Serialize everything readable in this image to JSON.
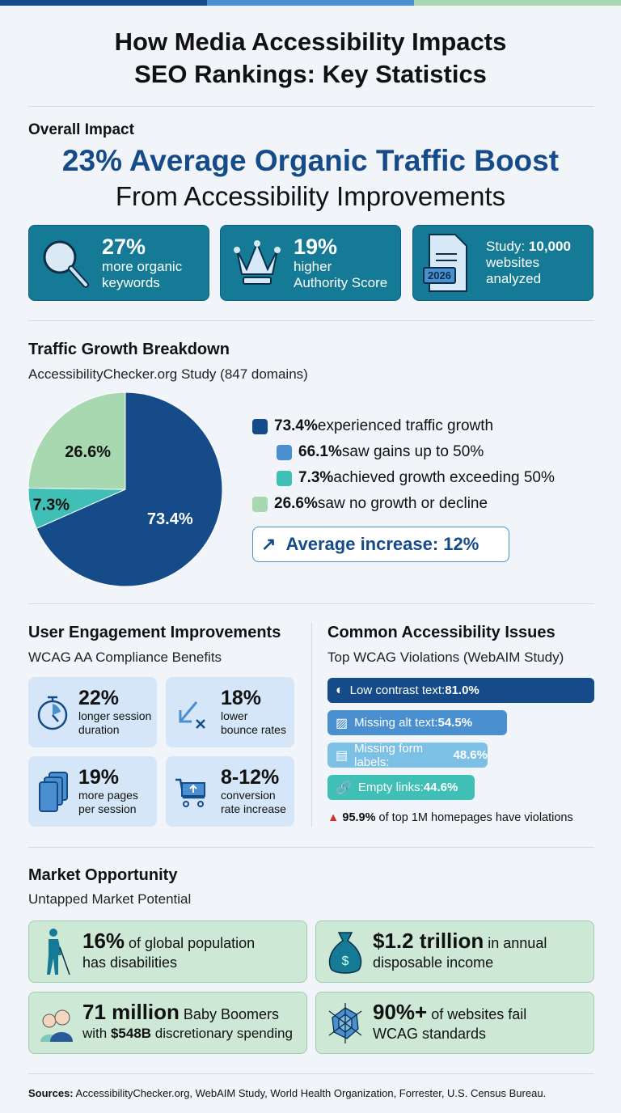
{
  "colors": {
    "dark_blue": "#164b8a",
    "mid_blue": "#4a8fd0",
    "teal": "#3fbfb6",
    "green": "#a8d8b0",
    "card_teal": "#147a96"
  },
  "title_lines": [
    "How Media Accessibility Impacts",
    "SEO Rankings: Key Statistics"
  ],
  "overall": {
    "label": "Overall Impact",
    "headline": "23% Average Organic Traffic Boost",
    "subhead": "From Accessibility Improvements",
    "cards": [
      {
        "icon": "magnifier-icon",
        "value": "27%",
        "text": [
          "more organic",
          "keywords"
        ]
      },
      {
        "icon": "crown-icon",
        "value": "19%",
        "text": [
          "higher",
          "Authority Score"
        ]
      },
      {
        "icon": "document-2026-icon",
        "badge": "2026",
        "prefix": "Study: ",
        "value": "10,000",
        "text": [
          "websites",
          "analyzed"
        ]
      }
    ]
  },
  "traffic": {
    "title": "Traffic Growth Breakdown",
    "subtitle": "AccessibilityChecker.org Study (847 domains)",
    "legend": [
      {
        "value": "73.4%",
        "text": " experienced traffic growth",
        "color": "#164b8a"
      },
      {
        "value": "66.1%",
        "text": " saw gains up to 50%",
        "color": "#4a8fd0"
      },
      {
        "value": "7.3%",
        "text": " achieved growth exceeding 50%",
        "color": "#3fbfb6"
      },
      {
        "value": "26.6%",
        "text": " saw no growth or decline",
        "color": "#a8d8b0"
      }
    ],
    "average": "Average increase: 12%"
  },
  "chart_data": {
    "type": "pie",
    "slices": [
      {
        "label": "73.4%",
        "value": 73.4,
        "color": "#164b8a"
      },
      {
        "label": "7.3%",
        "value": 7.3,
        "color": "#3fbfb6"
      },
      {
        "label": "26.6%",
        "value": 26.6,
        "color": "#a8d8b0"
      }
    ]
  },
  "engagement": {
    "title": "User Engagement Improvements",
    "subtitle": "WCAG AA Compliance Benefits",
    "cards": [
      {
        "icon": "stopwatch-icon",
        "value": "22%",
        "text": [
          "longer session",
          "duration"
        ]
      },
      {
        "icon": "arrow-down-left-x-icon",
        "value": "18%",
        "text": [
          "lower",
          "bounce rates"
        ]
      },
      {
        "icon": "pages-stack-icon",
        "value": "19%",
        "text": [
          "more pages",
          "per session"
        ]
      },
      {
        "icon": "cart-icon",
        "value": "8-12%",
        "text": [
          "conversion",
          "rate increase"
        ]
      }
    ]
  },
  "issues": {
    "title": "Common Accessibility Issues",
    "subtitle": "Top WCAG Violations (WebAIM Study)",
    "bars": [
      {
        "icon": "contrast-icon",
        "label": "Low contrast text: ",
        "value": "81.0%",
        "pct": 81.0,
        "color": "#164b8a"
      },
      {
        "icon": "image-icon",
        "label": "Missing alt text: ",
        "value": "54.5%",
        "pct": 54.5,
        "color": "#4a8fd0"
      },
      {
        "icon": "form-icon",
        "label": "Missing form labels: ",
        "value": "48.6%",
        "pct": 48.6,
        "color": "#7cc0e6"
      },
      {
        "icon": "link-icon",
        "label": "Empty links: ",
        "value": "44.6%",
        "pct": 44.6,
        "color": "#3fbfb6"
      }
    ],
    "note_value": "95.9%",
    "note_text": " of top 1M homepages have violations"
  },
  "market": {
    "title": "Market Opportunity",
    "subtitle": "Untapped Market Potential",
    "cards": [
      {
        "icon": "person-cane-icon",
        "value": "16%",
        "text1": " of global population",
        "text2": "has disabilities"
      },
      {
        "icon": "money-bag-icon",
        "value": "$1.2 trillion",
        "text1": " in annual",
        "text2": "disposable income"
      },
      {
        "icon": "elderly-couple-icon",
        "value": "71 million",
        "text1": " Baby Boomers",
        "text2_pre": "with ",
        "text2_bold": "$548B",
        "text2": " discretionary spending"
      },
      {
        "icon": "spider-web-icon",
        "value": "90%+",
        "text1": " of websites fail",
        "text2": "WCAG standards"
      }
    ]
  },
  "sources": {
    "label": "Sources:",
    "text": " AccessibilityChecker.org, WebAIM Study, World Health Organization, Forrester, U.S. Census Bureau."
  }
}
